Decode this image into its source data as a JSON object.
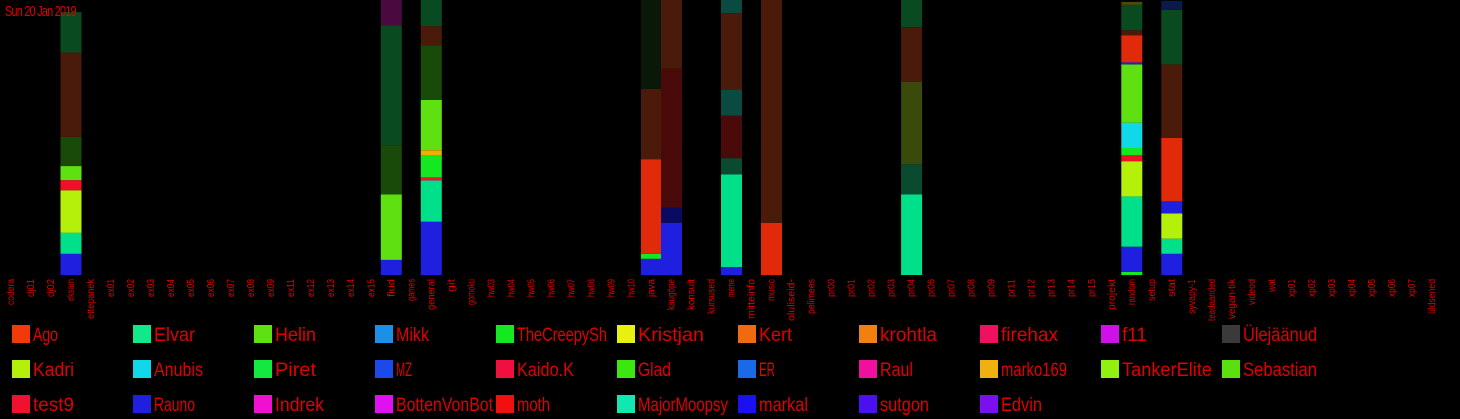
{
  "date_label": "Sun 20 Jan 2019",
  "chart_data": {
    "type": "bar",
    "stacked": true,
    "title": "",
    "xlabel": "",
    "ylabel": "",
    "grid": false,
    "legend_position": "bottom",
    "ylim": [
      0,
      100
    ],
    "categories": [
      "codera",
      "dj01",
      "dj02",
      "eksam",
      "ettepanek",
      "ex01",
      "ex02",
      "ex03",
      "ex04",
      "ex05",
      "ex06",
      "ex07",
      "ex08",
      "ex09",
      "ex11",
      "ex12",
      "ex13",
      "ex14",
      "ex15",
      "fiud",
      "games",
      "general",
      "git",
      "gomoku",
      "hw03",
      "hw04",
      "hw05",
      "hw06",
      "hw07",
      "hw08",
      "hw09",
      "hw10",
      "java",
      "kaugöpe",
      "konsult",
      "kursused",
      "meme",
      "mitteinfo",
      "music",
      "oluliseid-",
      "pelimees",
      "pr00",
      "pr01",
      "pr02",
      "pr03",
      "pr04",
      "pr06",
      "pr07",
      "pr08",
      "pr09",
      "pr11",
      "pr12",
      "pr13",
      "pr14",
      "pr15",
      "projekt",
      "random",
      "setup",
      "stat",
      "syvapy-1",
      "teadaanded",
      "vegan-tik",
      "videod",
      "wat",
      "xp01",
      "xp02",
      "xp03",
      "xp04",
      "xp05",
      "xp06",
      "xp07",
      "üldsened"
    ],
    "segments": [
      {
        "category": "eksam",
        "parts": [
          {
            "color": "#1f1fe0",
            "value": 7.7
          },
          {
            "color": "#00e08a",
            "value": 7.7
          },
          {
            "color": "#b4f00a",
            "value": 15.4
          },
          {
            "color": "#f00f2a",
            "value": 3.7
          },
          {
            "color": "#5fe010",
            "value": 5.1
          },
          {
            "color": "#1a4a0a",
            "value": 10.6
          },
          {
            "color": "#4a1a0a",
            "value": 30.7
          },
          {
            "color": "#0a4a20",
            "value": 14.7
          }
        ]
      },
      {
        "category": "fiud",
        "parts": [
          {
            "color": "#1f1fe0",
            "value": 5.5
          },
          {
            "color": "#5fe010",
            "value": 23.8
          },
          {
            "color": "#1a4a0a",
            "value": 17.9
          },
          {
            "color": "#0a4a20",
            "value": 43.6
          },
          {
            "color": "#4a0a40",
            "value": 9.2
          }
        ]
      },
      {
        "category": "general",
        "parts": [
          {
            "color": "#1f1fe0",
            "value": 19.4
          },
          {
            "color": "#00e08a",
            "value": 15.0
          },
          {
            "color": "#f0103a",
            "value": 1.1
          },
          {
            "color": "#14e820",
            "value": 8.1
          },
          {
            "color": "#f0b000",
            "value": 1.8
          },
          {
            "color": "#5fe010",
            "value": 18.3
          },
          {
            "color": "#1a4a0a",
            "value": 19.8
          },
          {
            "color": "#4a1a0a",
            "value": 7.0
          },
          {
            "color": "#0a4a20",
            "value": 9.5
          }
        ]
      },
      {
        "category": "java",
        "parts": [
          {
            "color": "#1f1fe0",
            "value": 5.9
          },
          {
            "color": "#14e820",
            "value": 1.8
          },
          {
            "color": "#e02a0a",
            "value": 34.4
          },
          {
            "color": "#4a1a0a",
            "value": 25.6
          },
          {
            "color": "#0a180a",
            "value": 32.3
          }
        ]
      },
      {
        "category": "kaugöpe",
        "parts": [
          {
            "color": "#1f1fe0",
            "value": 19.0
          },
          {
            "color": "#0a0a60",
            "value": 5.5
          },
          {
            "color": "#4a0a0a",
            "value": 50.5
          },
          {
            "color": "#4a1a0a",
            "value": 25.0
          }
        ]
      },
      {
        "category": "meme",
        "parts": [
          {
            "color": "#1f1fe0",
            "value": 2.9
          },
          {
            "color": "#00e08a",
            "value": 33.7
          },
          {
            "color": "#0a4a30",
            "value": 5.9
          },
          {
            "color": "#4a0a0a",
            "value": 15.4
          },
          {
            "color": "#0a4a40",
            "value": 9.5
          },
          {
            "color": "#4a1a0a",
            "value": 27.8
          },
          {
            "color": "#0a4a40",
            "value": 4.8
          }
        ]
      },
      {
        "category": "music",
        "parts": [
          {
            "color": "#e02a0a",
            "value": 19.0
          },
          {
            "color": "#4a1a0a",
            "value": 81.0
          }
        ]
      },
      {
        "category": "pr04",
        "parts": [
          {
            "color": "#00e08a",
            "value": 29.3
          },
          {
            "color": "#0a4a30",
            "value": 11.0
          },
          {
            "color": "#3a4a0a",
            "value": 30.0
          },
          {
            "color": "#4a1a0a",
            "value": 19.8
          },
          {
            "color": "#0a4a20",
            "value": 9.9
          }
        ]
      },
      {
        "category": "random",
        "parts": [
          {
            "color": "#14e820",
            "value": 1.1
          },
          {
            "color": "#1f1fe0",
            "value": 9.2
          },
          {
            "color": "#00e08a",
            "value": 18.3
          },
          {
            "color": "#b4f00a",
            "value": 12.8
          },
          {
            "color": "#f00f2a",
            "value": 2.2
          },
          {
            "color": "#14e820",
            "value": 2.6
          },
          {
            "color": "#10d8e8",
            "value": 9.2
          },
          {
            "color": "#5fe010",
            "value": 21.2
          },
          {
            "color": "#1f1fe0",
            "value": 0.7
          },
          {
            "color": "#e02a0a",
            "value": 9.9
          },
          {
            "color": "#4a1a0a",
            "value": 1.8
          },
          {
            "color": "#0a4a20",
            "value": 9.2
          },
          {
            "color": "#4a4a0a",
            "value": 1.1
          }
        ]
      },
      {
        "category": "stat",
        "parts": [
          {
            "color": "#1f1fe0",
            "value": 7.7
          },
          {
            "color": "#00e08a",
            "value": 5.5
          },
          {
            "color": "#b4f00a",
            "value": 9.2
          },
          {
            "color": "#1f1fe0",
            "value": 4.4
          },
          {
            "color": "#e02a0a",
            "value": 23.1
          },
          {
            "color": "#4a1a0a",
            "value": 26.7
          },
          {
            "color": "#0a4a20",
            "value": 19.8
          },
          {
            "color": "#0a1a4a",
            "value": 3.3
          }
        ]
      }
    ],
    "legend": [
      {
        "name": "Ago",
        "color": "#f03a0a"
      },
      {
        "name": "Elvar",
        "color": "#10e88a"
      },
      {
        "name": "Helin",
        "color": "#5fe010"
      },
      {
        "name": "Mikk",
        "color": "#1a90e8"
      },
      {
        "name": "TheCreepySh",
        "color": "#14e820"
      },
      {
        "name": "Kristjan",
        "color": "#e8f010"
      },
      {
        "name": "Kert",
        "color": "#f06a10"
      },
      {
        "name": "krohtla",
        "color": "#f08010"
      },
      {
        "name": "firehax",
        "color": "#f01060"
      },
      {
        "name": "f11",
        "color": "#d010e8"
      },
      {
        "name": "Ülejäänud",
        "color": "#3a3a3a"
      },
      {
        "name": "Kadri",
        "color": "#b4f00a"
      },
      {
        "name": "Anubis",
        "color": "#10d8e8"
      },
      {
        "name": "Piret",
        "color": "#14e840"
      },
      {
        "name": "MZ",
        "color": "#1a4ae8"
      },
      {
        "name": "Kaido.K",
        "color": "#f01040"
      },
      {
        "name": "Glad",
        "color": "#3ae810"
      },
      {
        "name": "ER",
        "color": "#1a6ae8"
      },
      {
        "name": "Raul",
        "color": "#f010a0"
      },
      {
        "name": "marko169",
        "color": "#f0b010"
      },
      {
        "name": "TankerElite",
        "color": "#90f010"
      },
      {
        "name": "Sebastian",
        "color": "#5ae010"
      },
      {
        "name": "test9",
        "color": "#f01030"
      },
      {
        "name": "Rauno",
        "color": "#1f1fe0"
      },
      {
        "name": "Indrek",
        "color": "#f010d0"
      },
      {
        "name": "BottenVonBot",
        "color": "#e010f0"
      },
      {
        "name": "moth",
        "color": "#f01010"
      },
      {
        "name": "MajorMoopsy",
        "color": "#10e8b0"
      },
      {
        "name": "markal",
        "color": "#1a10f0"
      },
      {
        "name": "sutgon",
        "color": "#4a10f0"
      },
      {
        "name": "Edvin",
        "color": "#7a10f0"
      }
    ]
  }
}
